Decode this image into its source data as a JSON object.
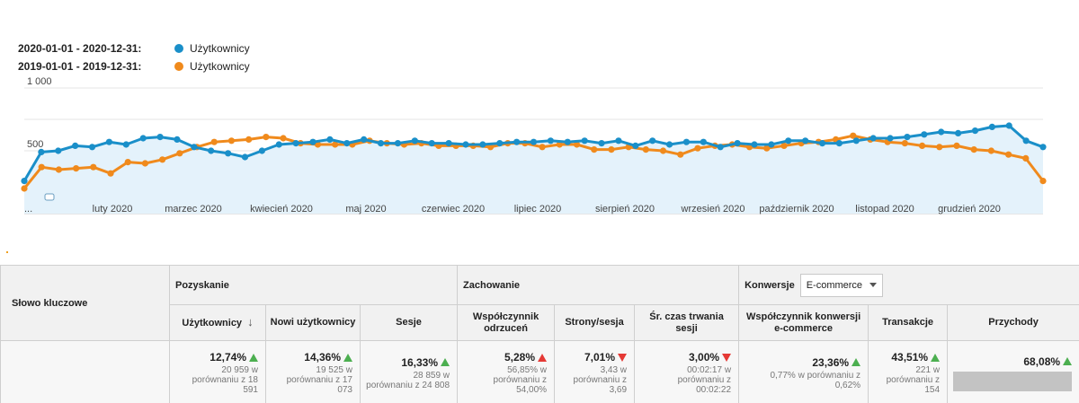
{
  "legend": {
    "series": [
      {
        "period": "2020-01-01 - 2020-12-31:",
        "metric": "Użytkownicy",
        "color": "#1a8fc9"
      },
      {
        "period": "2019-01-01 - 2019-12-31:",
        "metric": "Użytkownicy",
        "color": "#f08a1c"
      }
    ]
  },
  "chart_data": {
    "type": "line",
    "ylabels": [
      "1 000",
      "500"
    ],
    "ylim": [
      0,
      1000
    ],
    "xlabels": [
      "...",
      "luty 2020",
      "marzec 2020",
      "kwiecień 2020",
      "maj 2020",
      "czerwiec 2020",
      "lipiec 2020",
      "sierpień 2020",
      "wrzesień 2020",
      "październik 2020",
      "listopad 2020",
      "grudzień 2020"
    ],
    "series": [
      {
        "name": "2020-01-01 - 2020-12-31: Użytkownicy",
        "color": "#1a8fc9",
        "values": [
          260,
          490,
          500,
          540,
          530,
          570,
          550,
          600,
          610,
          590,
          530,
          500,
          480,
          450,
          500,
          550,
          560,
          570,
          590,
          560,
          590,
          560,
          560,
          580,
          560,
          560,
          550,
          550,
          560,
          570,
          570,
          580,
          570,
          580,
          560,
          580,
          540,
          580,
          550,
          570,
          570,
          530,
          560,
          550,
          550,
          580,
          580,
          560,
          560,
          580,
          600,
          600,
          610,
          630,
          650,
          640,
          660,
          690,
          700,
          580,
          530
        ]
      },
      {
        "name": "2019-01-01 - 2019-12-31: Użytkownicy",
        "color": "#f08a1c",
        "values": [
          200,
          370,
          350,
          360,
          370,
          320,
          410,
          400,
          430,
          480,
          530,
          570,
          580,
          590,
          610,
          600,
          560,
          550,
          550,
          550,
          580,
          560,
          550,
          560,
          540,
          540,
          540,
          530,
          560,
          560,
          530,
          550,
          550,
          510,
          510,
          530,
          510,
          500,
          470,
          520,
          540,
          550,
          530,
          520,
          540,
          560,
          570,
          590,
          620,
          590,
          570,
          560,
          540,
          530,
          540,
          510,
          500,
          470,
          440,
          260
        ]
      }
    ]
  },
  "table": {
    "keyword_header": "Słowo kluczowe",
    "groups": {
      "acquisition": "Pozyskanie",
      "behavior": "Zachowanie",
      "conversions": "Konwersje",
      "conversion_select": "E-commerce"
    },
    "columns": [
      "Użytkownicy",
      "Nowi użytkownicy",
      "Sesje",
      "Współczynnik odrzuceń",
      "Strony/sesja",
      "Śr. czas trwania sesji",
      "Współczynnik konwersji e-commerce",
      "Transakcje",
      "Przychody"
    ],
    "summary": [
      {
        "pct": "12,74%",
        "cmp": "20 959 w porównaniu z 18 591"
      },
      {
        "pct": "14,36%",
        "cmp": "19 525 w porównaniu z 17 073"
      },
      {
        "pct": "16,33%",
        "cmp": "28 859 w porównaniu z 24 808"
      },
      {
        "pct": "5,28%",
        "cmp": "56,85% w porównaniu z 54,00%"
      },
      {
        "pct": "7,01%",
        "cmp": "3,43 w porównaniu z 3,69"
      },
      {
        "pct": "3,00%",
        "cmp": "00:02:17 w porównaniu z 00:02:22"
      },
      {
        "pct": "23,36%",
        "cmp": "0,77% w porównaniu z 0,62%"
      },
      {
        "pct": "43,51%",
        "cmp": "221 w porównaniu z 154"
      },
      {
        "pct": "68,08%",
        "cmp": ""
      }
    ]
  }
}
